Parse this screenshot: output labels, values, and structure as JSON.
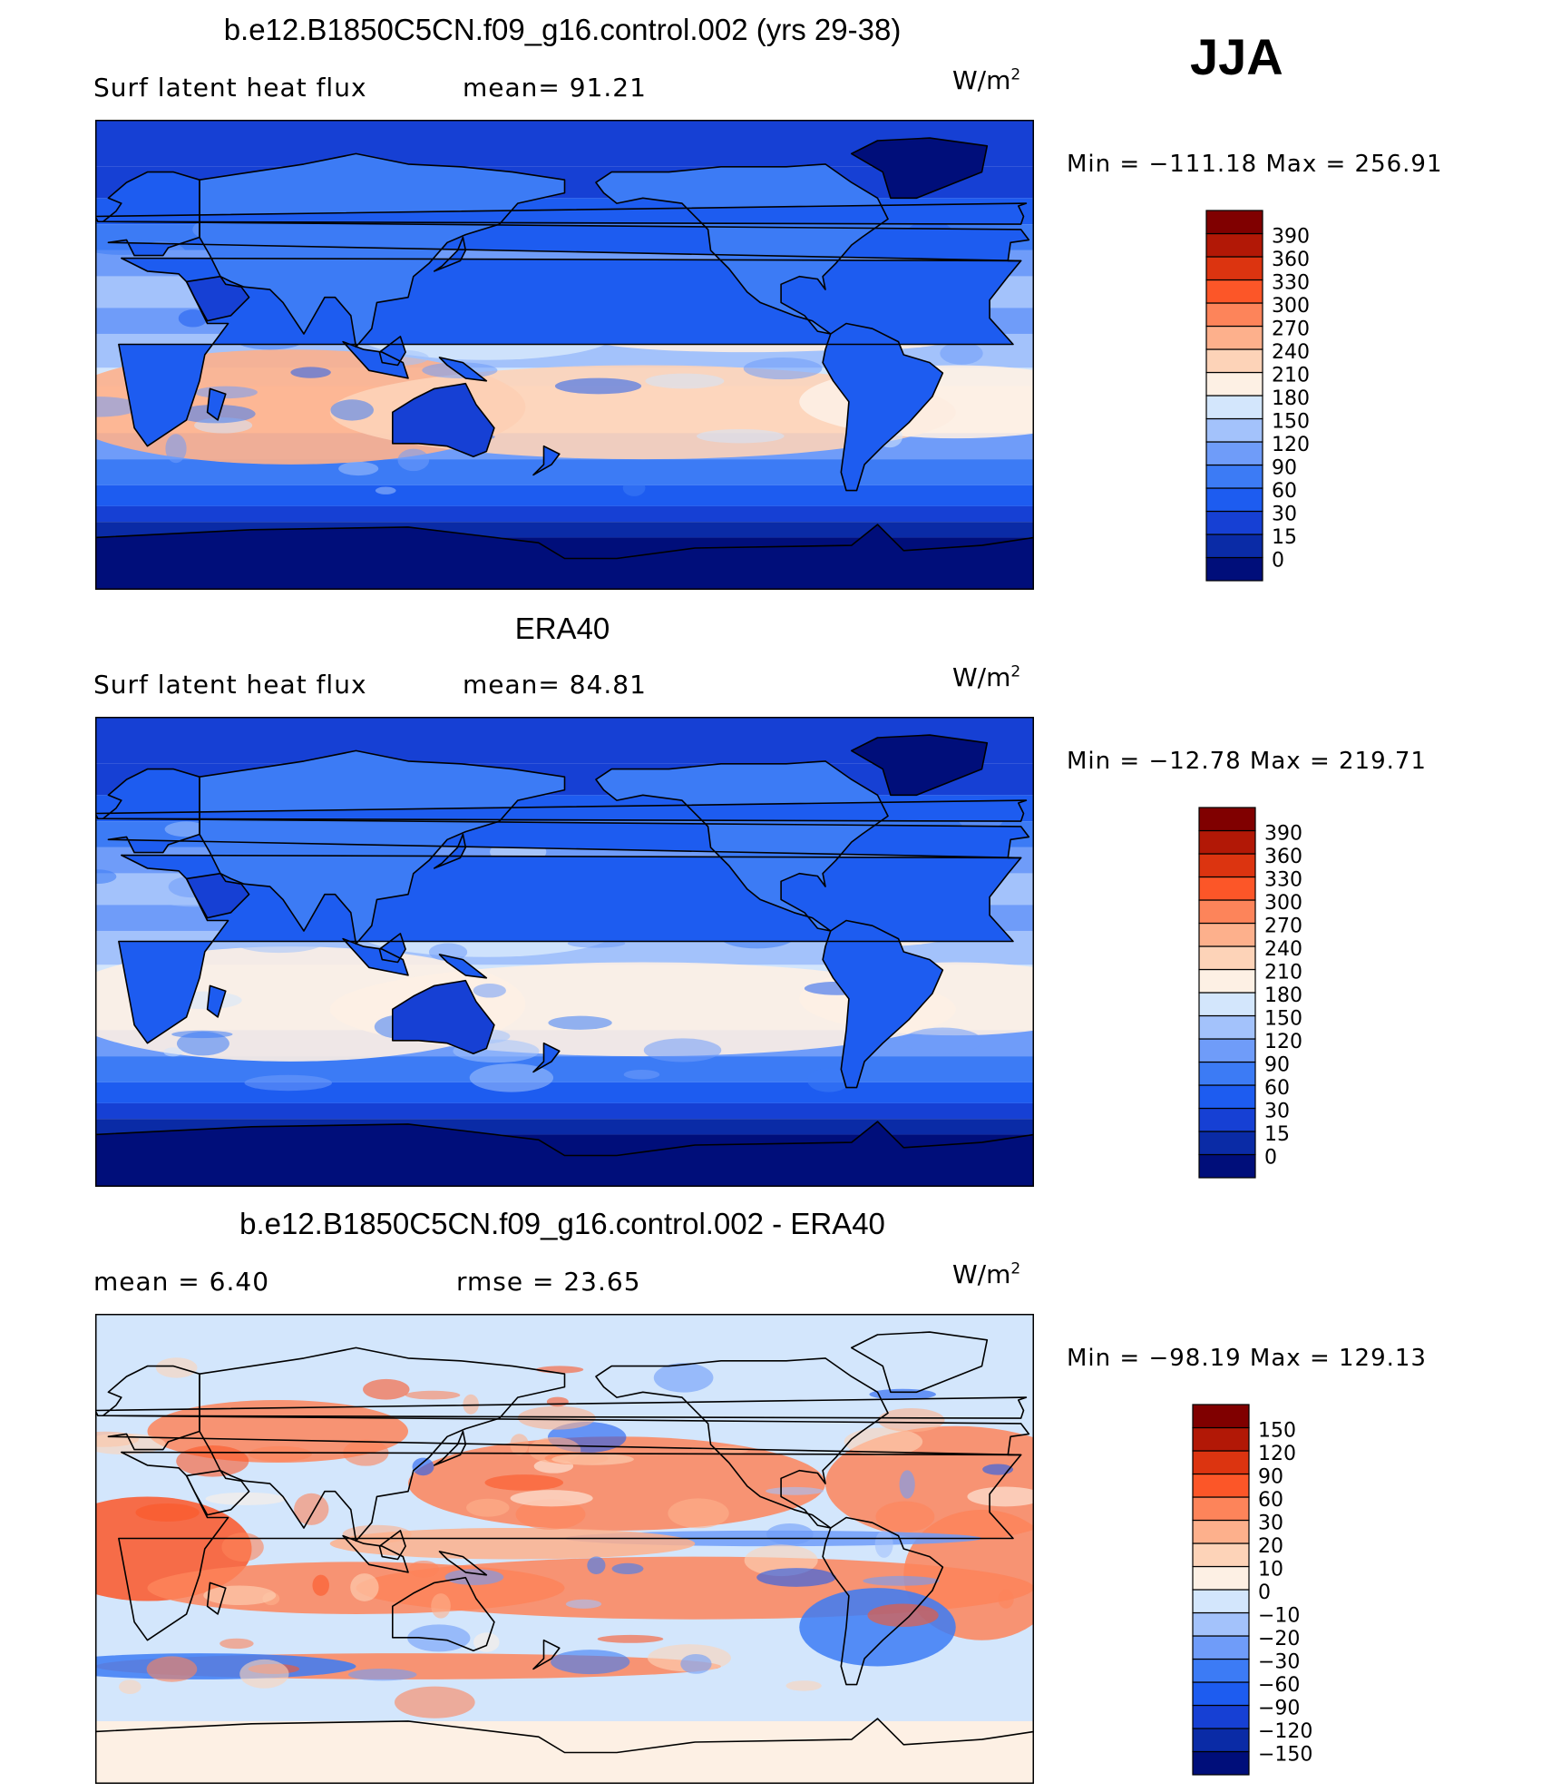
{
  "season": "JJA",
  "colors": {
    "standard_scale": [
      "#000e7a",
      "#0a2ba6",
      "#1640d4",
      "#1d5cf0",
      "#3c7bf5",
      "#6f9cf9",
      "#a3c2fb",
      "#d3e6fc",
      "#fdf0e4",
      "#fdd3b8",
      "#fdb08c",
      "#fd845a",
      "#fc5628",
      "#dc3410",
      "#b21806",
      "#800000"
    ],
    "diff_scale": [
      "#000e7a",
      "#0a2ba6",
      "#1640d4",
      "#1d5cf0",
      "#3c7bf5",
      "#6f9cf9",
      "#a3c2fb",
      "#d3e6fc",
      "#fdf0e4",
      "#fdd3b8",
      "#fdb08c",
      "#fd845a",
      "#fc5628",
      "#dc3410",
      "#b21806",
      "#800000"
    ]
  },
  "panels": [
    {
      "title": "b.e12.B1850C5CN.f09_g16.control.002 (yrs 29-38)",
      "left_label": "Surf latent heat flux",
      "center_label": "mean=   91.21",
      "units": "W/m",
      "units_exp": "2",
      "minmax": "Min  =  −111.18  Max  =  256.91"
    },
    {
      "title": "ERA40",
      "left_label": "Surf latent heat flux",
      "center_label": "mean=   84.81",
      "units": "W/m",
      "units_exp": "2",
      "minmax": "Min  =  −12.78  Max  =  219.71"
    },
    {
      "title": "b.e12.B1850C5CN.f09_g16.control.002 - ERA40",
      "left_label": "mean  =     6.40",
      "center_label": "rmse  =    23.65",
      "units": "W/m",
      "units_exp": "2",
      "minmax": "Min  =  −98.19  Max  =  129.13"
    }
  ],
  "chart_data": [
    {
      "type": "heatmap",
      "title": "b.e12.B1850C5CN.f09_g16.control.002 (yrs 29-38)",
      "variable": "Surf latent heat flux",
      "units": "W/m2",
      "mean": 91.21,
      "min": -111.18,
      "max": 256.91,
      "colorbar_levels": [
        0,
        15,
        30,
        60,
        90,
        120,
        150,
        180,
        210,
        240,
        270,
        300,
        330,
        360,
        390
      ]
    },
    {
      "type": "heatmap",
      "title": "ERA40",
      "variable": "Surf latent heat flux",
      "units": "W/m2",
      "mean": 84.81,
      "min": -12.78,
      "max": 219.71,
      "colorbar_levels": [
        0,
        15,
        30,
        60,
        90,
        120,
        150,
        180,
        210,
        240,
        270,
        300,
        330,
        360,
        390
      ]
    },
    {
      "type": "heatmap",
      "title": "b.e12.B1850C5CN.f09_g16.control.002 - ERA40",
      "units": "W/m2",
      "mean": 6.4,
      "rmse": 23.65,
      "min": -98.19,
      "max": 129.13,
      "colorbar_levels": [
        -150,
        -120,
        -90,
        -60,
        -30,
        -20,
        -10,
        0,
        10,
        20,
        30,
        60,
        90,
        120,
        150
      ]
    }
  ]
}
